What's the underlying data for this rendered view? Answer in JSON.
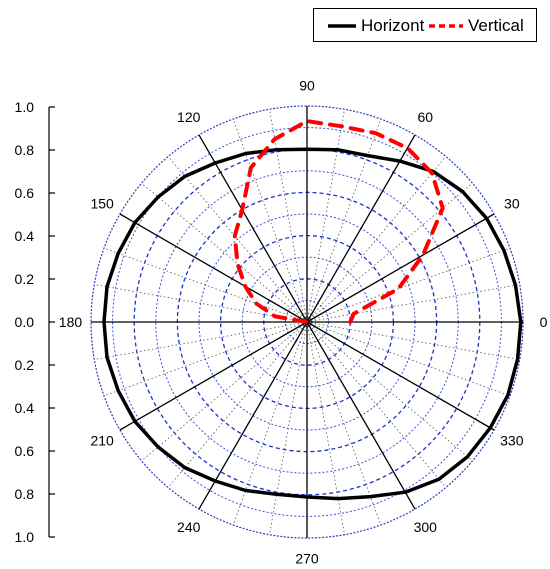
{
  "chart_data": {
    "type": "polar-line",
    "series": [
      {
        "name": "Horizont",
        "color": "#000000",
        "style": "solid",
        "angles_deg": [
          0,
          10,
          20,
          30,
          40,
          50,
          60,
          70,
          80,
          90,
          100,
          110,
          120,
          130,
          140,
          150,
          160,
          170,
          180,
          190,
          200,
          210,
          220,
          230,
          240,
          250,
          260,
          270,
          280,
          290,
          300,
          310,
          320,
          330,
          340,
          350
        ],
        "values": [
          0.99,
          0.98,
          0.97,
          0.96,
          0.94,
          0.91,
          0.86,
          0.82,
          0.81,
          0.8,
          0.81,
          0.83,
          0.85,
          0.88,
          0.9,
          0.92,
          0.93,
          0.94,
          0.94,
          0.94,
          0.93,
          0.92,
          0.9,
          0.88,
          0.85,
          0.83,
          0.81,
          0.81,
          0.83,
          0.86,
          0.91,
          0.95,
          0.97,
          0.98,
          0.99,
          0.99
        ]
      },
      {
        "name": "Vertical",
        "color": "#ff0000",
        "style": "dashed",
        "angles_deg": [
          0,
          10,
          20,
          30,
          40,
          50,
          60,
          70,
          80,
          90,
          100,
          110,
          120,
          130,
          140,
          150,
          160,
          170,
          180
        ],
        "values": [
          0.2,
          0.22,
          0.45,
          0.62,
          0.82,
          0.9,
          0.93,
          0.93,
          0.92,
          0.93,
          0.86,
          0.76,
          0.6,
          0.52,
          0.42,
          0.33,
          0.25,
          0.15,
          0.0
        ]
      }
    ],
    "angle_ticks": [
      "0",
      "30",
      "60",
      "90",
      "120",
      "150",
      "180",
      "210",
      "240",
      "270",
      "300",
      "330"
    ],
    "radial_ticks": [
      "1.0",
      "0.8",
      "0.6",
      "0.4",
      "0.2",
      "0.0",
      "0.2",
      "0.4",
      "0.6",
      "0.8",
      "1.0"
    ],
    "rlim": [
      0,
      1.0
    ],
    "angular_gridlines_deg": 10,
    "radial_gridline_step": 0.1,
    "legend": "top-right",
    "grid": true
  }
}
